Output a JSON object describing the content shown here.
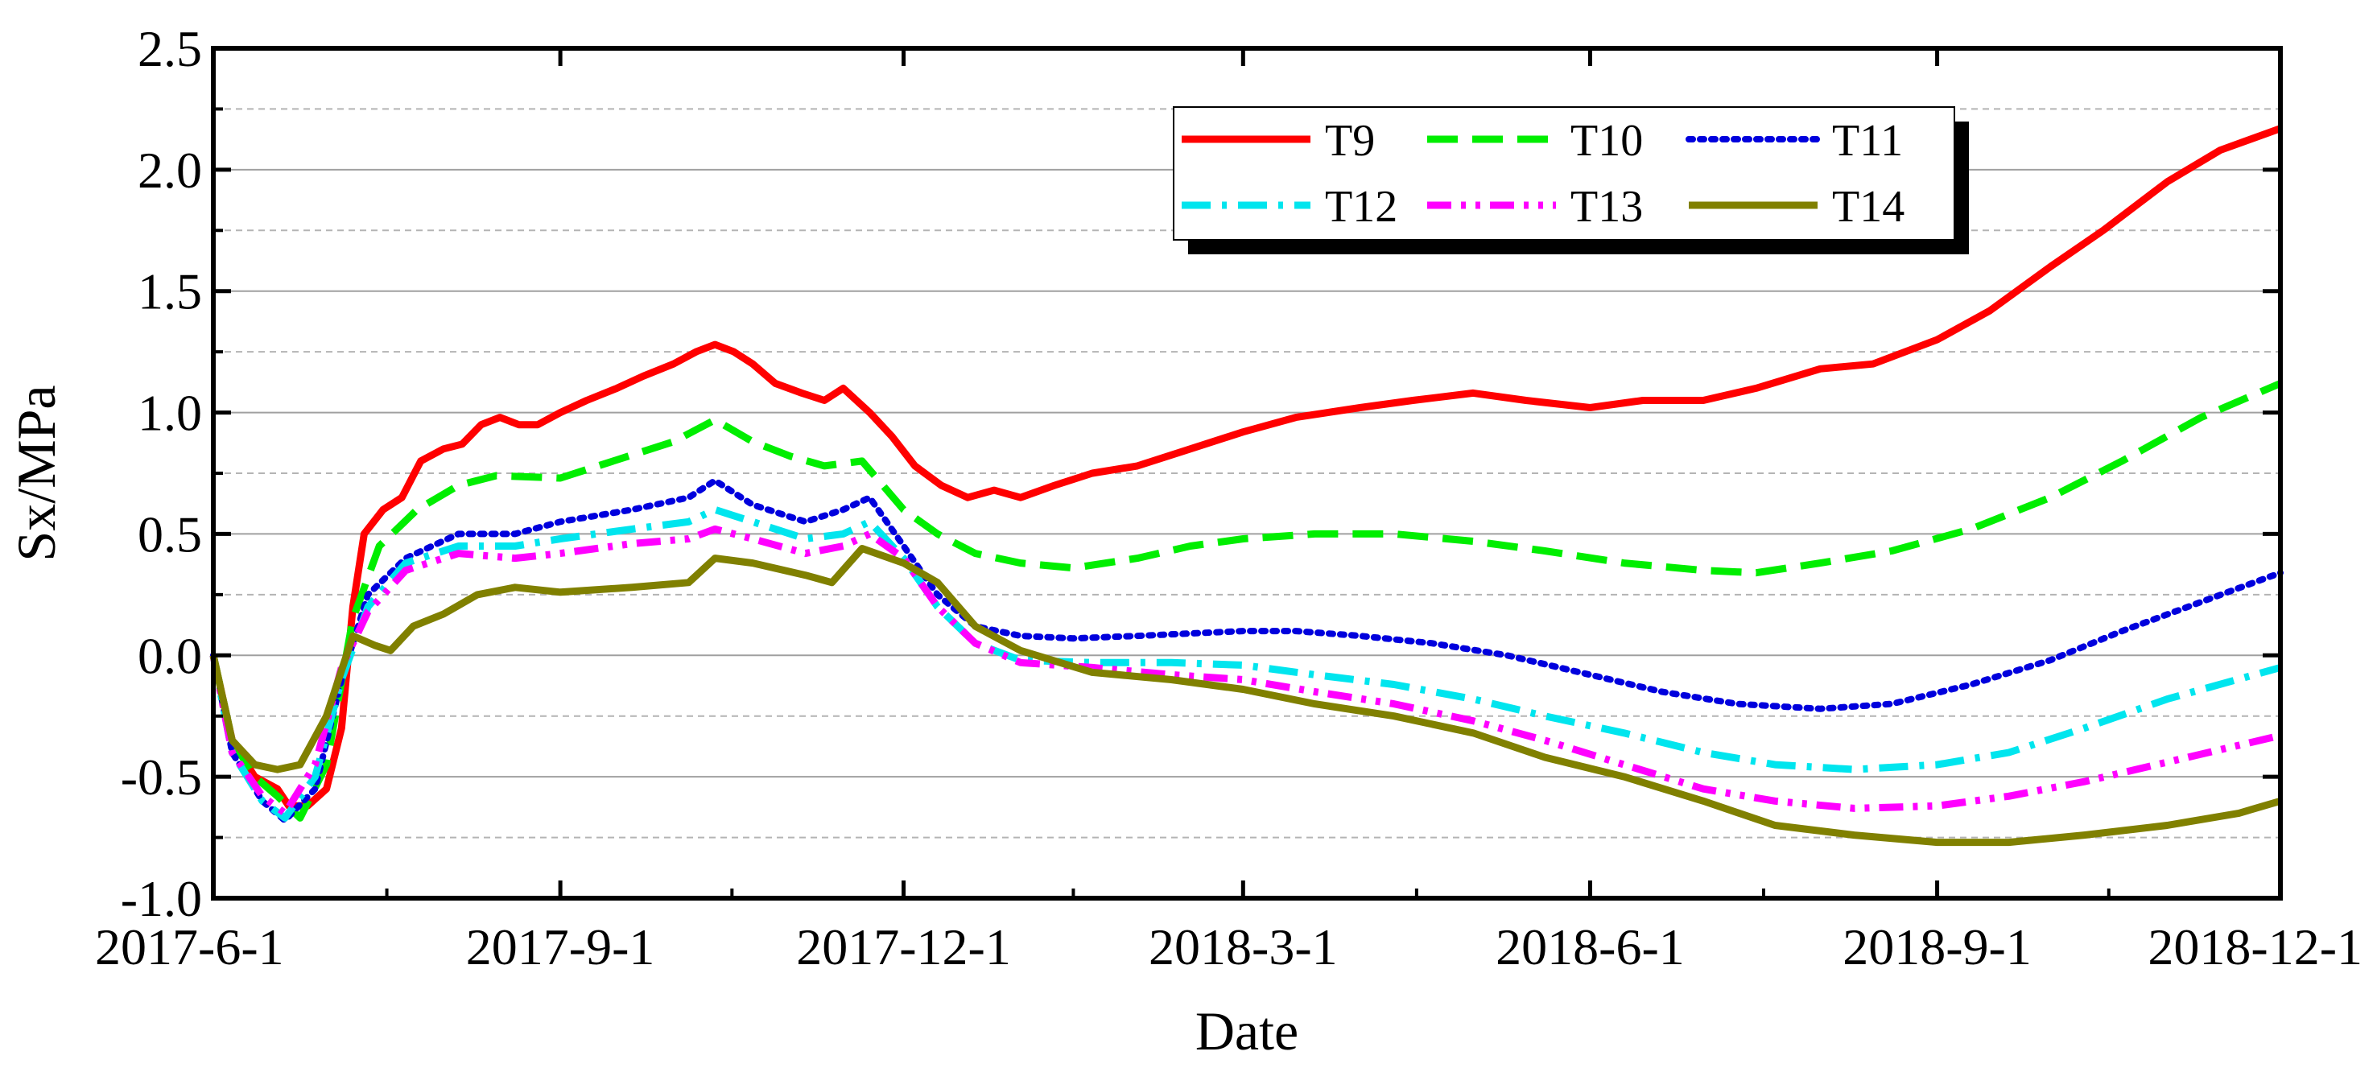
{
  "chart_data": {
    "type": "line",
    "title": "",
    "xlabel": "Date",
    "ylabel": "Sx/MPa",
    "xlim": [
      "2017-6-1",
      "2018-12-1"
    ],
    "ylim": [
      -1.0,
      2.5
    ],
    "x_ticks": [
      "2017-6-1",
      "2017-9-1",
      "2017-12-1",
      "2018-3-1",
      "2018-6-1",
      "2018-9-1",
      "2018-12-1"
    ],
    "y_ticks": [
      "-1.0",
      "-0.5",
      "0.0",
      "0.5",
      "1.0",
      "1.5",
      "2.0",
      "2.5"
    ],
    "grid": {
      "major_y": true,
      "minor_y": true,
      "x": false
    },
    "legend": {
      "placement": "top-right",
      "columns": 3
    },
    "series": [
      {
        "name": "T9",
        "color": "#ff0000",
        "style": "solid",
        "points": [
          [
            "2017-6-1",
            0.0
          ],
          [
            "2017-6-6",
            -0.35
          ],
          [
            "2017-6-12",
            -0.5
          ],
          [
            "2017-6-18",
            -0.55
          ],
          [
            "2017-6-21",
            -0.62
          ],
          [
            "2017-6-26",
            -0.62
          ],
          [
            "2017-7-1",
            -0.55
          ],
          [
            "2017-7-5",
            -0.3
          ],
          [
            "2017-7-8",
            0.2
          ],
          [
            "2017-7-11",
            0.5
          ],
          [
            "2017-7-16",
            0.6
          ],
          [
            "2017-7-21",
            0.65
          ],
          [
            "2017-7-26",
            0.8
          ],
          [
            "2017-8-1",
            0.85
          ],
          [
            "2017-8-6",
            0.87
          ],
          [
            "2017-8-11",
            0.95
          ],
          [
            "2017-8-16",
            0.98
          ],
          [
            "2017-8-21",
            0.95
          ],
          [
            "2017-8-26",
            0.95
          ],
          [
            "2017-9-1",
            1.0
          ],
          [
            "2017-9-8",
            1.05
          ],
          [
            "2017-9-16",
            1.1
          ],
          [
            "2017-9-23",
            1.15
          ],
          [
            "2017-10-1",
            1.2
          ],
          [
            "2017-10-7",
            1.25
          ],
          [
            "2017-10-12",
            1.28
          ],
          [
            "2017-10-17",
            1.25
          ],
          [
            "2017-10-22",
            1.2
          ],
          [
            "2017-10-28",
            1.12
          ],
          [
            "2017-11-4",
            1.08
          ],
          [
            "2017-11-10",
            1.05
          ],
          [
            "2017-11-15",
            1.1
          ],
          [
            "2017-11-22",
            1.0
          ],
          [
            "2017-11-28",
            0.9
          ],
          [
            "2017-12-4",
            0.78
          ],
          [
            "2017-12-11",
            0.7
          ],
          [
            "2017-12-18",
            0.65
          ],
          [
            "2017-12-25",
            0.68
          ],
          [
            "2018-1-1",
            0.65
          ],
          [
            "2018-1-10",
            0.7
          ],
          [
            "2018-1-20",
            0.75
          ],
          [
            "2018-2-1",
            0.78
          ],
          [
            "2018-2-15",
            0.85
          ],
          [
            "2018-3-1",
            0.92
          ],
          [
            "2018-3-15",
            0.98
          ],
          [
            "2018-4-1",
            1.02
          ],
          [
            "2018-4-15",
            1.05
          ],
          [
            "2018-5-1",
            1.08
          ],
          [
            "2018-5-15",
            1.05
          ],
          [
            "2018-6-1",
            1.02
          ],
          [
            "2018-6-15",
            1.05
          ],
          [
            "2018-7-1",
            1.05
          ],
          [
            "2018-7-15",
            1.1
          ],
          [
            "2018-8-1",
            1.18
          ],
          [
            "2018-8-15",
            1.2
          ],
          [
            "2018-9-1",
            1.3
          ],
          [
            "2018-9-15",
            1.42
          ],
          [
            "2018-10-1",
            1.6
          ],
          [
            "2018-10-15",
            1.75
          ],
          [
            "2018-11-1",
            1.95
          ],
          [
            "2018-11-15",
            2.08
          ],
          [
            "2018-12-1",
            2.17
          ]
        ]
      },
      {
        "name": "T10",
        "color": "#00ee00",
        "style": "dashed",
        "points": [
          [
            "2017-6-1",
            0.0
          ],
          [
            "2017-6-6",
            -0.35
          ],
          [
            "2017-6-12",
            -0.5
          ],
          [
            "2017-6-18",
            -0.58
          ],
          [
            "2017-6-24",
            -0.67
          ],
          [
            "2017-7-1",
            -0.45
          ],
          [
            "2017-7-8",
            0.15
          ],
          [
            "2017-7-15",
            0.45
          ],
          [
            "2017-7-25",
            0.6
          ],
          [
            "2017-8-5",
            0.7
          ],
          [
            "2017-8-15",
            0.74
          ],
          [
            "2017-9-1",
            0.73
          ],
          [
            "2017-9-15",
            0.8
          ],
          [
            "2017-10-1",
            0.88
          ],
          [
            "2017-10-12",
            0.97
          ],
          [
            "2017-10-22",
            0.88
          ],
          [
            "2017-11-1",
            0.82
          ],
          [
            "2017-11-10",
            0.78
          ],
          [
            "2017-11-20",
            0.8
          ],
          [
            "2017-12-1",
            0.6
          ],
          [
            "2017-12-10",
            0.5
          ],
          [
            "2017-12-20",
            0.42
          ],
          [
            "2018-1-1",
            0.38
          ],
          [
            "2018-1-15",
            0.36
          ],
          [
            "2018-2-1",
            0.4
          ],
          [
            "2018-2-15",
            0.45
          ],
          [
            "2018-3-1",
            0.48
          ],
          [
            "2018-3-20",
            0.5
          ],
          [
            "2018-4-10",
            0.5
          ],
          [
            "2018-5-1",
            0.47
          ],
          [
            "2018-5-20",
            0.43
          ],
          [
            "2018-6-10",
            0.38
          ],
          [
            "2018-7-1",
            0.35
          ],
          [
            "2018-7-15",
            0.34
          ],
          [
            "2018-8-1",
            0.38
          ],
          [
            "2018-8-20",
            0.43
          ],
          [
            "2018-9-10",
            0.52
          ],
          [
            "2018-10-1",
            0.65
          ],
          [
            "2018-10-20",
            0.8
          ],
          [
            "2018-11-10",
            0.98
          ],
          [
            "2018-12-1",
            1.12
          ]
        ]
      },
      {
        "name": "T11",
        "color": "#0000dd",
        "style": "dotted",
        "points": [
          [
            "2017-6-1",
            0.0
          ],
          [
            "2017-6-6",
            -0.4
          ],
          [
            "2017-6-14",
            -0.6
          ],
          [
            "2017-6-20",
            -0.68
          ],
          [
            "2017-6-28",
            -0.55
          ],
          [
            "2017-7-5",
            -0.1
          ],
          [
            "2017-7-12",
            0.25
          ],
          [
            "2017-7-22",
            0.4
          ],
          [
            "2017-8-5",
            0.5
          ],
          [
            "2017-8-20",
            0.5
          ],
          [
            "2017-9-1",
            0.55
          ],
          [
            "2017-9-20",
            0.6
          ],
          [
            "2017-10-5",
            0.65
          ],
          [
            "2017-10-12",
            0.72
          ],
          [
            "2017-10-22",
            0.62
          ],
          [
            "2017-11-5",
            0.55
          ],
          [
            "2017-11-15",
            0.6
          ],
          [
            "2017-11-22",
            0.65
          ],
          [
            "2017-12-1",
            0.45
          ],
          [
            "2017-12-10",
            0.25
          ],
          [
            "2017-12-20",
            0.12
          ],
          [
            "2018-1-1",
            0.08
          ],
          [
            "2018-1-15",
            0.07
          ],
          [
            "2018-2-1",
            0.08
          ],
          [
            "2018-2-15",
            0.09
          ],
          [
            "2018-3-1",
            0.1
          ],
          [
            "2018-3-15",
            0.1
          ],
          [
            "2018-4-1",
            0.08
          ],
          [
            "2018-4-20",
            0.05
          ],
          [
            "2018-5-10",
            0.0
          ],
          [
            "2018-6-1",
            -0.08
          ],
          [
            "2018-6-20",
            -0.15
          ],
          [
            "2018-7-10",
            -0.2
          ],
          [
            "2018-8-1",
            -0.22
          ],
          [
            "2018-8-20",
            -0.2
          ],
          [
            "2018-9-10",
            -0.12
          ],
          [
            "2018-10-1",
            -0.02
          ],
          [
            "2018-10-20",
            0.1
          ],
          [
            "2018-11-10",
            0.22
          ],
          [
            "2018-12-1",
            0.34
          ]
        ]
      },
      {
        "name": "T12",
        "color": "#00e5ee",
        "style": "dashdot",
        "points": [
          [
            "2017-6-1",
            0.0
          ],
          [
            "2017-6-6",
            -0.4
          ],
          [
            "2017-6-14",
            -0.6
          ],
          [
            "2017-6-20",
            -0.67
          ],
          [
            "2017-6-28",
            -0.5
          ],
          [
            "2017-7-5",
            -0.1
          ],
          [
            "2017-7-12",
            0.2
          ],
          [
            "2017-7-22",
            0.38
          ],
          [
            "2017-8-5",
            0.45
          ],
          [
            "2017-8-20",
            0.45
          ],
          [
            "2017-9-1",
            0.48
          ],
          [
            "2017-9-20",
            0.52
          ],
          [
            "2017-10-5",
            0.55
          ],
          [
            "2017-10-12",
            0.6
          ],
          [
            "2017-10-22",
            0.55
          ],
          [
            "2017-11-5",
            0.48
          ],
          [
            "2017-11-15",
            0.5
          ],
          [
            "2017-11-22",
            0.55
          ],
          [
            "2017-12-1",
            0.4
          ],
          [
            "2017-12-10",
            0.2
          ],
          [
            "2017-12-20",
            0.05
          ],
          [
            "2018-1-1",
            -0.02
          ],
          [
            "2018-1-20",
            -0.03
          ],
          [
            "2018-2-10",
            -0.03
          ],
          [
            "2018-3-1",
            -0.04
          ],
          [
            "2018-3-20",
            -0.08
          ],
          [
            "2018-4-10",
            -0.12
          ],
          [
            "2018-5-1",
            -0.18
          ],
          [
            "2018-5-20",
            -0.25
          ],
          [
            "2018-6-10",
            -0.32
          ],
          [
            "2018-7-1",
            -0.4
          ],
          [
            "2018-7-20",
            -0.45
          ],
          [
            "2018-8-10",
            -0.47
          ],
          [
            "2018-9-1",
            -0.45
          ],
          [
            "2018-9-20",
            -0.4
          ],
          [
            "2018-10-10",
            -0.3
          ],
          [
            "2018-11-1",
            -0.18
          ],
          [
            "2018-12-1",
            -0.05
          ]
        ]
      },
      {
        "name": "T13",
        "color": "#ff00ff",
        "style": "dashdotdot",
        "points": [
          [
            "2017-6-1",
            0.0
          ],
          [
            "2017-6-6",
            -0.4
          ],
          [
            "2017-6-14",
            -0.58
          ],
          [
            "2017-6-20",
            -0.65
          ],
          [
            "2017-6-28",
            -0.45
          ],
          [
            "2017-7-5",
            -0.05
          ],
          [
            "2017-7-12",
            0.18
          ],
          [
            "2017-7-22",
            0.35
          ],
          [
            "2017-8-5",
            0.42
          ],
          [
            "2017-8-20",
            0.4
          ],
          [
            "2017-9-1",
            0.42
          ],
          [
            "2017-9-20",
            0.46
          ],
          [
            "2017-10-5",
            0.48
          ],
          [
            "2017-10-12",
            0.52
          ],
          [
            "2017-10-22",
            0.48
          ],
          [
            "2017-11-5",
            0.42
          ],
          [
            "2017-11-15",
            0.45
          ],
          [
            "2017-11-22",
            0.5
          ],
          [
            "2017-12-1",
            0.4
          ],
          [
            "2017-12-10",
            0.2
          ],
          [
            "2017-12-20",
            0.05
          ],
          [
            "2018-1-1",
            -0.03
          ],
          [
            "2018-1-20",
            -0.05
          ],
          [
            "2018-2-10",
            -0.08
          ],
          [
            "2018-3-1",
            -0.1
          ],
          [
            "2018-3-20",
            -0.15
          ],
          [
            "2018-4-10",
            -0.2
          ],
          [
            "2018-5-1",
            -0.27
          ],
          [
            "2018-5-20",
            -0.35
          ],
          [
            "2018-6-10",
            -0.45
          ],
          [
            "2018-7-1",
            -0.55
          ],
          [
            "2018-7-20",
            -0.6
          ],
          [
            "2018-8-10",
            -0.63
          ],
          [
            "2018-9-1",
            -0.62
          ],
          [
            "2018-9-20",
            -0.58
          ],
          [
            "2018-10-10",
            -0.52
          ],
          [
            "2018-11-1",
            -0.44
          ],
          [
            "2018-12-1",
            -0.33
          ]
        ]
      },
      {
        "name": "T14",
        "color": "#808000",
        "style": "solid",
        "points": [
          [
            "2017-6-1",
            0.0
          ],
          [
            "2017-6-6",
            -0.35
          ],
          [
            "2017-6-12",
            -0.45
          ],
          [
            "2017-6-18",
            -0.47
          ],
          [
            "2017-6-24",
            -0.45
          ],
          [
            "2017-7-1",
            -0.25
          ],
          [
            "2017-7-8",
            0.08
          ],
          [
            "2017-7-14",
            0.04
          ],
          [
            "2017-7-18",
            0.02
          ],
          [
            "2017-7-24",
            0.12
          ],
          [
            "2017-8-1",
            0.17
          ],
          [
            "2017-8-10",
            0.25
          ],
          [
            "2017-8-20",
            0.28
          ],
          [
            "2017-9-1",
            0.26
          ],
          [
            "2017-9-20",
            0.28
          ],
          [
            "2017-10-5",
            0.3
          ],
          [
            "2017-10-12",
            0.4
          ],
          [
            "2017-10-22",
            0.38
          ],
          [
            "2017-11-5",
            0.33
          ],
          [
            "2017-11-12",
            0.3
          ],
          [
            "2017-11-20",
            0.44
          ],
          [
            "2017-12-1",
            0.38
          ],
          [
            "2017-12-10",
            0.3
          ],
          [
            "2017-12-20",
            0.12
          ],
          [
            "2018-1-1",
            0.02
          ],
          [
            "2018-1-20",
            -0.07
          ],
          [
            "2018-2-10",
            -0.1
          ],
          [
            "2018-3-1",
            -0.14
          ],
          [
            "2018-3-20",
            -0.2
          ],
          [
            "2018-4-10",
            -0.25
          ],
          [
            "2018-5-1",
            -0.32
          ],
          [
            "2018-5-20",
            -0.42
          ],
          [
            "2018-6-10",
            -0.5
          ],
          [
            "2018-7-1",
            -0.6
          ],
          [
            "2018-7-20",
            -0.7
          ],
          [
            "2018-8-10",
            -0.74
          ],
          [
            "2018-9-1",
            -0.77
          ],
          [
            "2018-9-20",
            -0.77
          ],
          [
            "2018-10-10",
            -0.74
          ],
          [
            "2018-11-1",
            -0.7
          ],
          [
            "2018-11-20",
            -0.65
          ],
          [
            "2018-12-1",
            -0.6
          ]
        ]
      }
    ]
  }
}
